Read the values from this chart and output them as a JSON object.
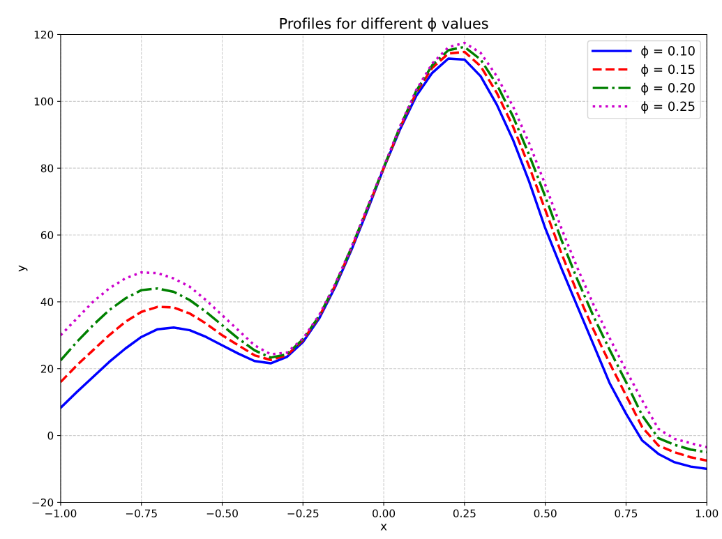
{
  "chart_data": {
    "type": "line",
    "title": "Profiles for different ϕ values",
    "xlabel": "x",
    "ylabel": "y",
    "x": [
      -1,
      -0.95,
      -0.9,
      -0.85,
      -0.8,
      -0.75,
      -0.7,
      -0.65,
      -0.6,
      -0.55,
      -0.5,
      -0.45,
      -0.4,
      -0.35,
      -0.3,
      -0.25,
      -0.2,
      -0.15,
      -0.1,
      -0.05,
      0,
      0.05,
      0.1,
      0.15,
      0.2,
      0.25,
      0.3,
      0.35,
      0.4,
      0.45,
      0.5,
      0.55,
      0.6,
      0.65,
      0.7,
      0.75,
      0.8,
      0.85,
      0.9,
      0.95,
      1
    ],
    "series": [
      {
        "name": "ϕ = 0.10",
        "color": "#0000ff",
        "line_style": "solid",
        "values": [
          8.3,
          13,
          17.5,
          22,
          26,
          29.5,
          31.8,
          32.3,
          31.5,
          29.5,
          27,
          24.5,
          22.3,
          21.6,
          23.5,
          28,
          35,
          44.5,
          55.5,
          67.5,
          80,
          91.5,
          101.5,
          108.5,
          112.8,
          112.5,
          107.5,
          99,
          88.5,
          76,
          62,
          50,
          38.5,
          27,
          15.5,
          6.5,
          -1.5,
          -5.5,
          -8,
          -9.3,
          -10
        ]
      },
      {
        "name": "ϕ = 0.15",
        "color": "#ff0000",
        "line_style": "dashed",
        "values": [
          16,
          21,
          25.5,
          30,
          34,
          37,
          38.5,
          38.3,
          36.5,
          33.5,
          30,
          27,
          24,
          22.6,
          24,
          28.5,
          35.5,
          45,
          56,
          68,
          80,
          92,
          102.5,
          110,
          114.3,
          114.8,
          110.5,
          102.5,
          92.5,
          80.5,
          67.5,
          54.5,
          42.5,
          31.5,
          21.5,
          12,
          2.5,
          -3,
          -5,
          -6.5,
          -7.5
        ]
      },
      {
        "name": "ϕ = 0.20",
        "color": "#008000",
        "line_style": "dashdot",
        "values": [
          22.5,
          28,
          33,
          37.5,
          41,
          43.5,
          44,
          43,
          40.5,
          37,
          33,
          29,
          25.5,
          23.3,
          24.3,
          28.8,
          35.7,
          45.2,
          56.2,
          68.2,
          80.2,
          92.3,
          103,
          110.8,
          115.3,
          116.3,
          112.5,
          105,
          95.5,
          84,
          71.5,
          58.5,
          46.5,
          35.5,
          25.5,
          16,
          6,
          -0.8,
          -2.8,
          -4.2,
          -5
        ]
      },
      {
        "name": "ϕ = 0.25",
        "color": "#cc00cc",
        "line_style": "dotted",
        "values": [
          30,
          35,
          40,
          44,
          47,
          48.8,
          48.6,
          47,
          44.5,
          40.5,
          36,
          31.5,
          27,
          24.3,
          24.8,
          29,
          36,
          45.4,
          56.4,
          68.4,
          80.4,
          92.5,
          103.3,
          111.3,
          116.2,
          117.5,
          114.5,
          107.5,
          98.5,
          87.5,
          75,
          62,
          50,
          39,
          29,
          19.5,
          10.5,
          2,
          -1,
          -2.3,
          -3.5
        ]
      }
    ],
    "xlim": [
      -1,
      1
    ],
    "ylim": [
      -20,
      120
    ],
    "xticks": [
      {
        "value": -1,
        "label": "−1.00"
      },
      {
        "value": -0.75,
        "label": "−0.75"
      },
      {
        "value": -0.5,
        "label": "−0.50"
      },
      {
        "value": -0.25,
        "label": "−0.25"
      },
      {
        "value": 0,
        "label": "0.00"
      },
      {
        "value": 0.25,
        "label": "0.25"
      },
      {
        "value": 0.5,
        "label": "0.50"
      },
      {
        "value": 0.75,
        "label": "0.75"
      },
      {
        "value": 1,
        "label": "1.00"
      }
    ],
    "yticks": [
      {
        "value": -20,
        "label": "−20"
      },
      0,
      20,
      40,
      60,
      80,
      100,
      120
    ],
    "grid": true,
    "legend": "top right",
    "marker": "none"
  }
}
